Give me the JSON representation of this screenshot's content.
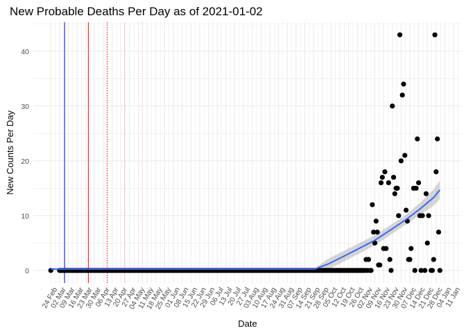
{
  "chart_data": {
    "type": "scatter",
    "title": "New Probable Deaths Per Day as of 2021-01-02",
    "xlabel": "Date",
    "ylabel": "New Counts Per Day",
    "x_origin": "2020-02-24",
    "xlim": [
      "2020-02-10",
      "2021-01-17"
    ],
    "ylim": [
      -2.3,
      45.3
    ],
    "y_ticks": [
      0,
      10,
      20,
      30,
      40
    ],
    "x_tick_labels": [
      "24 Feb",
      "02 Mar",
      "09 Mar",
      "16 Mar",
      "23 Mar",
      "30 Mar",
      "06 Apr",
      "13 Apr",
      "20 Apr",
      "27 Apr",
      "04 May",
      "11 May",
      "18 May",
      "25 May",
      "01 Jun",
      "08 Jun",
      "15 Jun",
      "22 Jun",
      "29 Jun",
      "06 Jul",
      "13 Jul",
      "20 Jul",
      "27 Jul",
      "03 Aug",
      "10 Aug",
      "17 Aug",
      "24 Aug",
      "31 Aug",
      "07 Sep",
      "14 Sep",
      "21 Sep",
      "28 Sep",
      "05 Oct",
      "12 Oct",
      "19 Oct",
      "26 Oct",
      "02 Nov",
      "09 Nov",
      "16 Nov",
      "23 Nov",
      "30 Nov",
      "07 Dec",
      "14 Dec",
      "21 Dec",
      "28 Dec",
      "04 Jan",
      "11 Jan"
    ],
    "grid": true,
    "vertical_lines": [
      {
        "date": "2020-03-06",
        "color": "#0000ff",
        "style": "solid"
      },
      {
        "date": "2020-03-25",
        "color": "#ff0000",
        "style": "solid"
      },
      {
        "date": "2020-04-09",
        "color": "#ff0000",
        "style": "dotted"
      },
      {
        "date": "2020-04-23",
        "color": "#ffc0cb",
        "style": "solid"
      },
      {
        "date": "2020-05-07",
        "color": "#ffc0cb",
        "style": "dotted"
      }
    ],
    "zero_value_dates": {
      "single": [
        "2020-02-24",
        "2020-11-22",
        "2020-12-11",
        "2020-12-16",
        "2020-12-19",
        "2020-12-24",
        "2020-12-25",
        "2020-12-31"
      ],
      "range": [
        "2020-03-02",
        "2020-11-06"
      ]
    },
    "points": [
      [
        "2020-11-02",
        2
      ],
      [
        "2020-11-04",
        2
      ],
      [
        "2020-11-07",
        12
      ],
      [
        "2020-11-08",
        7
      ],
      [
        "2020-11-09",
        5
      ],
      [
        "2020-11-10",
        9
      ],
      [
        "2020-11-11",
        7
      ],
      [
        "2020-11-12",
        1
      ],
      [
        "2020-11-13",
        1
      ],
      [
        "2020-11-14",
        16
      ],
      [
        "2020-11-15",
        17
      ],
      [
        "2020-11-16",
        4
      ],
      [
        "2020-11-17",
        18
      ],
      [
        "2020-11-18",
        4
      ],
      [
        "2020-11-20",
        16
      ],
      [
        "2020-11-21",
        2
      ],
      [
        "2020-11-23",
        30
      ],
      [
        "2020-11-24",
        17
      ],
      [
        "2020-11-25",
        14
      ],
      [
        "2020-11-26",
        15
      ],
      [
        "2020-11-27",
        15
      ],
      [
        "2020-11-28",
        10
      ],
      [
        "2020-11-29",
        43
      ],
      [
        "2020-11-30",
        20
      ],
      [
        "2020-12-01",
        32
      ],
      [
        "2020-12-02",
        34
      ],
      [
        "2020-12-03",
        21
      ],
      [
        "2020-12-04",
        11
      ],
      [
        "2020-12-05",
        9
      ],
      [
        "2020-12-06",
        2
      ],
      [
        "2020-12-07",
        2
      ],
      [
        "2020-12-08",
        4
      ],
      [
        "2020-12-10",
        15
      ],
      [
        "2020-12-12",
        15
      ],
      [
        "2020-12-13",
        24
      ],
      [
        "2020-12-14",
        16
      ],
      [
        "2020-12-15",
        10
      ],
      [
        "2020-12-17",
        10
      ],
      [
        "2020-12-20",
        14
      ],
      [
        "2020-12-21",
        5
      ],
      [
        "2020-12-22",
        10
      ],
      [
        "2020-12-26",
        2
      ],
      [
        "2020-12-27",
        43
      ],
      [
        "2020-12-28",
        18
      ],
      [
        "2020-12-29",
        24
      ],
      [
        "2020-12-30",
        7
      ]
    ],
    "smooth": {
      "color": "#3366ff",
      "band_color": "#999999",
      "points": [
        [
          "2020-02-24",
          0.25,
          0.1,
          0.4
        ],
        [
          "2020-09-22",
          0.25,
          0.1,
          0.4
        ],
        [
          "2020-10-03",
          1.2,
          0.2,
          2.2
        ],
        [
          "2020-10-17",
          2.8,
          1.8,
          3.8
        ],
        [
          "2020-11-09",
          5.5,
          4.6,
          6.4
        ],
        [
          "2020-11-23",
          7.6,
          6.7,
          8.5
        ],
        [
          "2020-12-04",
          9.3,
          8.4,
          10.2
        ],
        [
          "2020-12-15",
          11.2,
          10.1,
          12.3
        ],
        [
          "2020-12-26",
          13.3,
          11.8,
          14.8
        ],
        [
          "2020-12-31",
          14.7,
          13.0,
          16.4
        ]
      ]
    }
  }
}
